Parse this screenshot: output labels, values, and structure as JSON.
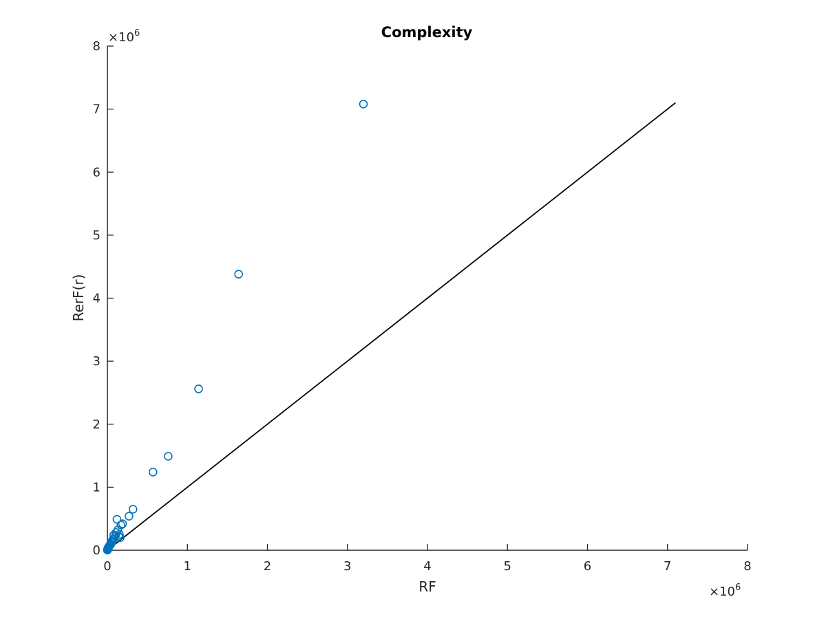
{
  "chart_data": {
    "type": "scatter",
    "title": "Complexity",
    "xlabel": "RF",
    "ylabel": "RerF(r)",
    "xlim": [
      0,
      8000000
    ],
    "ylim": [
      0,
      8000000
    ],
    "xticks": [
      0,
      1,
      2,
      3,
      4,
      5,
      6,
      7,
      8
    ],
    "yticks": [
      0,
      1,
      2,
      3,
      4,
      5,
      6,
      7,
      8
    ],
    "x_exponent_label": "×10",
    "x_exponent_power": "6",
    "y_exponent_label": "×10",
    "y_exponent_power": "6",
    "marker_color": "#0072BD",
    "line_color": "#000000",
    "reference_line": {
      "x": [
        0,
        7100000
      ],
      "y": [
        0,
        7100000
      ]
    },
    "series": [
      {
        "marker": "circle-open",
        "x": [
          3200000,
          1640000,
          1140000,
          760000,
          570000,
          320000,
          270000,
          190000,
          170000,
          120000,
          130000,
          110000,
          150000,
          100000,
          90000,
          80000,
          70000,
          60000,
          50000,
          40000,
          30000,
          20000,
          15000,
          10000,
          8000,
          5000,
          3000,
          2000,
          1000,
          500,
          140000,
          160000,
          60000,
          40000,
          25000
        ],
        "y": [
          7080000,
          4380000,
          2560000,
          1490000,
          1240000,
          650000,
          540000,
          420000,
          400000,
          490000,
          320000,
          280000,
          250000,
          230000,
          200000,
          240000,
          170000,
          150000,
          120000,
          100000,
          80000,
          60000,
          50000,
          40000,
          30000,
          20000,
          10000,
          8000,
          5000,
          2000,
          220000,
          200000,
          130000,
          90000,
          70000
        ]
      }
    ]
  }
}
